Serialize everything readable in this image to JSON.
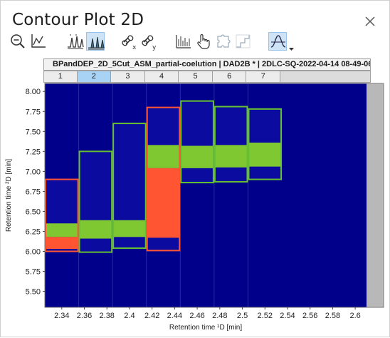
{
  "window": {
    "title": "Contour Plot 2D"
  },
  "toolbar": {
    "buttons": [
      {
        "name": "zoom-out-button",
        "icon": "zoom-out-icon"
      },
      {
        "name": "axis-scale-button",
        "icon": "axis-icon"
      },
      {
        "name": "peaks-button",
        "icon": "peaks-icon"
      },
      {
        "name": "peaks-filled-button",
        "icon": "peaks-filled-icon"
      },
      {
        "name": "x-link-button",
        "icon": "link-x-icon"
      },
      {
        "name": "y-link-button",
        "icon": "link-y-icon"
      },
      {
        "name": "bars-button",
        "icon": "bars-icon"
      },
      {
        "name": "pan-hand-button",
        "icon": "hand-icon"
      },
      {
        "name": "puzzle-button",
        "icon": "puzzle-icon"
      },
      {
        "name": "steps-button",
        "icon": "steps-icon"
      },
      {
        "name": "peak-shape-button",
        "icon": "peak-shape-icon"
      }
    ]
  },
  "plot": {
    "header": "BPandDEP_2D_5Cut_ASM_partial-coelution | DAD2B * | 2DLC-SQ-2022-04-14 08-49-06+02",
    "cuts": [
      "1",
      "2",
      "3",
      "4",
      "5",
      "6",
      "7"
    ],
    "selected_cut": "2",
    "colors": {
      "background": "#00008b",
      "accent_line": "#1a1aa8",
      "green": "#7fc832",
      "red": "#ff5533",
      "green_border": "#66c030",
      "red_border": "#ff5533",
      "gray": "#b8b8b8"
    }
  },
  "chart_data": {
    "type": "heatmap",
    "xlabel": "Retention time ¹D [min]",
    "ylabel": "Retention time ²D [min]",
    "xlim": [
      2.325,
      2.61
    ],
    "ylim": [
      5.3,
      8.1
    ],
    "x_ticks": [
      "2.34",
      "2.36",
      "2.38",
      "2.4",
      "2.42",
      "2.44",
      "2.46",
      "2.48",
      "2.5",
      "2.52",
      "2.54",
      "2.56",
      "2.58",
      "2.6"
    ],
    "x_tick_values": [
      2.34,
      2.36,
      2.38,
      2.4,
      2.42,
      2.44,
      2.46,
      2.48,
      2.5,
      2.52,
      2.54,
      2.56,
      2.58,
      2.6
    ],
    "y_ticks": [
      "5.50",
      "5.75",
      "6.00",
      "6.25",
      "6.50",
      "6.75",
      "7.00",
      "7.25",
      "7.50",
      "7.75",
      "8.00"
    ],
    "y_tick_values": [
      5.5,
      5.75,
      6.0,
      6.25,
      6.5,
      6.75,
      7.0,
      7.25,
      7.5,
      7.75,
      8.0
    ],
    "cuts": [
      {
        "label": "1",
        "x0": 2.325,
        "x1": 2.355,
        "box_color": "red",
        "box": [
          6.0,
          6.9
        ],
        "green": [
          6.18,
          6.35
        ],
        "red": [
          6.03,
          6.18
        ]
      },
      {
        "label": "2",
        "x0": 2.355,
        "x1": 2.385,
        "box_color": "green",
        "box": [
          5.99,
          7.25
        ],
        "green": [
          6.16,
          6.39
        ],
        "red": null
      },
      {
        "label": "3",
        "x0": 2.385,
        "x1": 2.415,
        "box_color": "green",
        "box": [
          6.04,
          7.6
        ],
        "green": [
          6.18,
          6.39
        ],
        "red": null
      },
      {
        "label": "4",
        "x0": 2.415,
        "x1": 2.445,
        "box_color": "red",
        "box": [
          6.01,
          7.8
        ],
        "green": [
          7.04,
          7.33
        ],
        "red": [
          6.17,
          7.04
        ]
      },
      {
        "label": "5",
        "x0": 2.445,
        "x1": 2.475,
        "box_color": "green",
        "box": [
          6.86,
          7.88
        ],
        "green": [
          7.04,
          7.32
        ],
        "red": null
      },
      {
        "label": "6",
        "x0": 2.475,
        "x1": 2.505,
        "box_color": "green",
        "box": [
          6.87,
          7.81
        ],
        "green": [
          7.05,
          7.33
        ],
        "red": null
      },
      {
        "label": "7",
        "x0": 2.505,
        "x1": 2.535,
        "box_color": "green",
        "box": [
          6.9,
          7.78
        ],
        "green": [
          7.06,
          7.36
        ],
        "red": null
      }
    ]
  }
}
